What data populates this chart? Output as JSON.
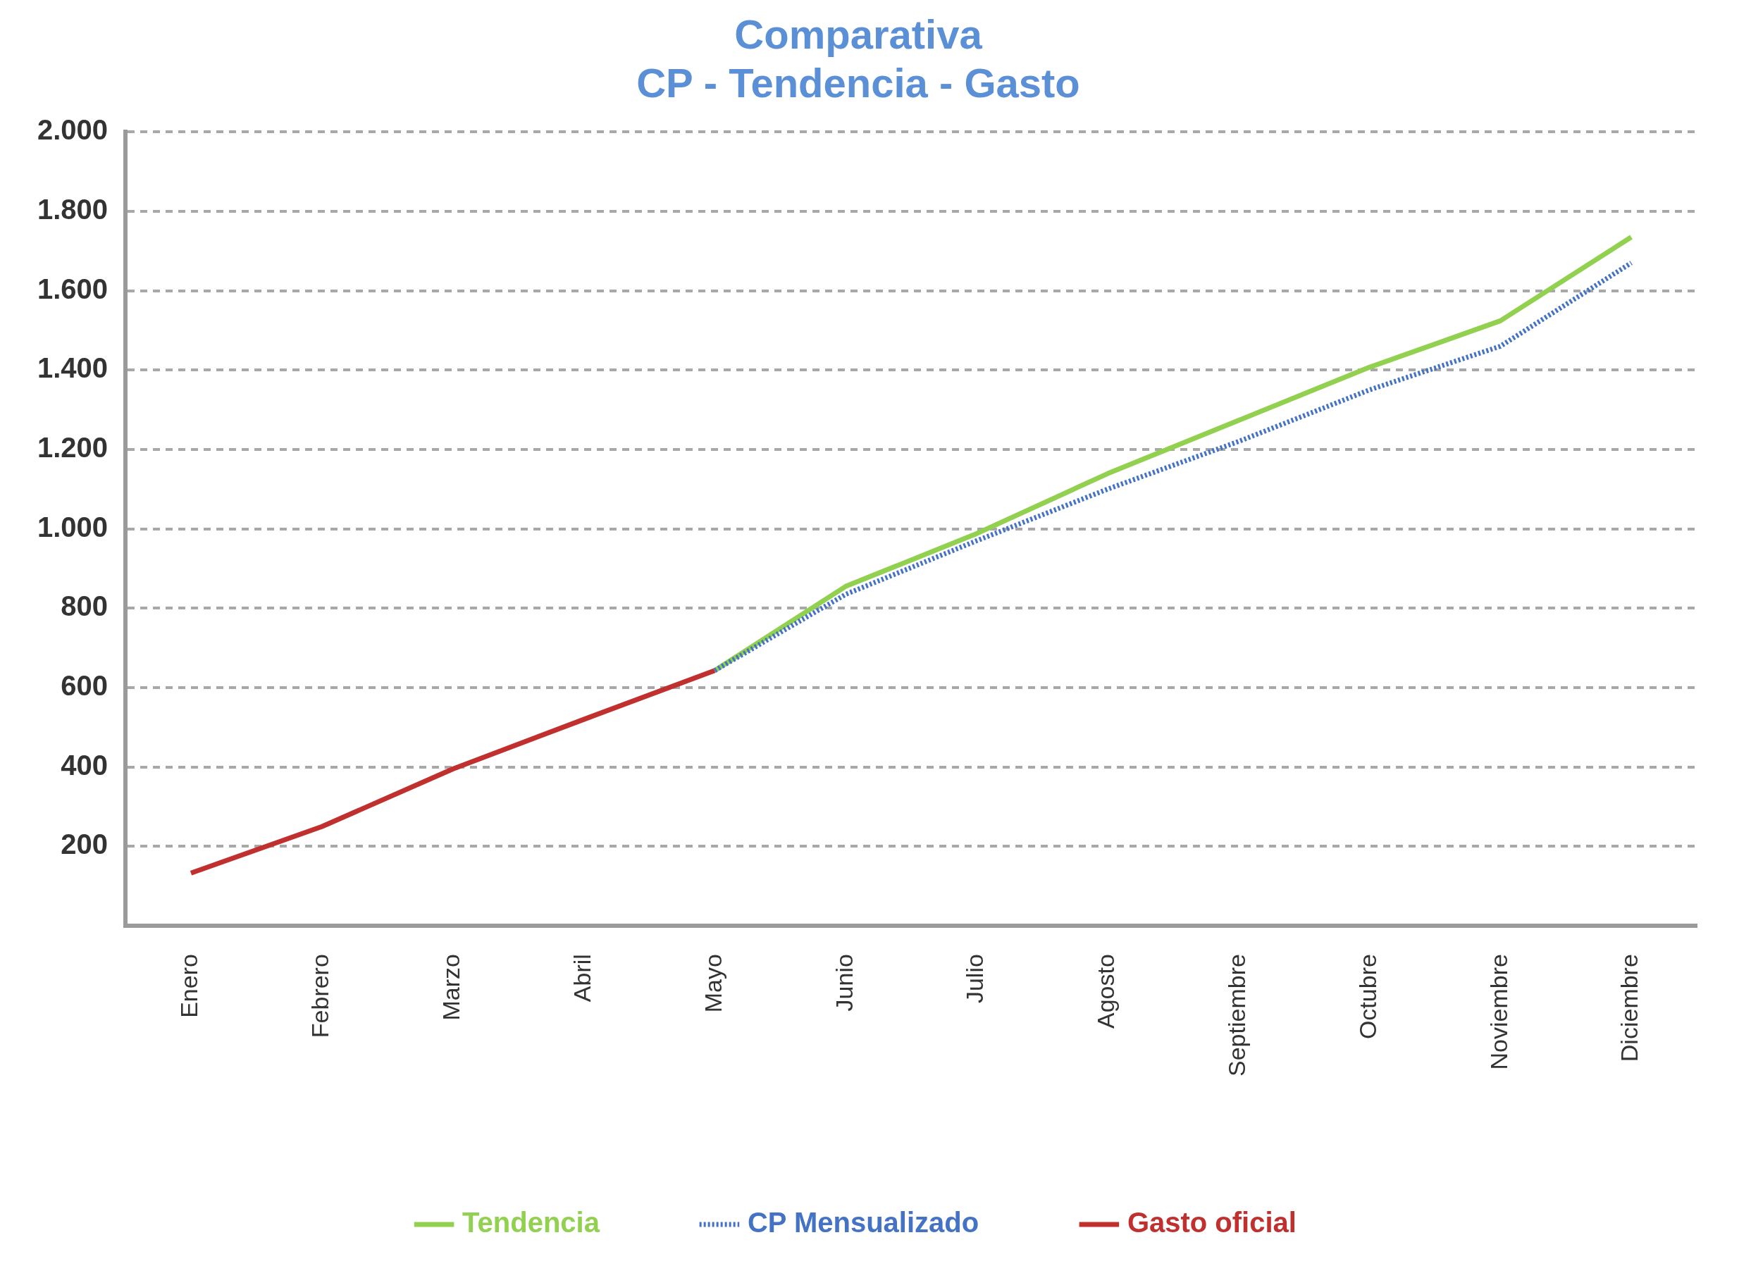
{
  "chart_data": {
    "type": "line",
    "title": [
      "Comparativa",
      "CP - Tendencia - Gasto"
    ],
    "categories": [
      "Enero",
      "Febrero",
      "Marzo",
      "Abril",
      "Mayo",
      "Junio",
      "Julio",
      "Agosto",
      "Septiembre",
      "Octubre",
      "Noviembre",
      "Diciembre"
    ],
    "series": [
      {
        "name": "Tendencia",
        "color": "#92d050",
        "line_style": "solid",
        "values": [
          null,
          null,
          null,
          null,
          643,
          855,
          988,
          1139,
          1273,
          1407,
          1524,
          1735
        ]
      },
      {
        "name": "CP Mensualizado",
        "color": "#4472c4",
        "line_style": "dotted",
        "values": [
          null,
          null,
          null,
          null,
          643,
          835,
          970,
          1100,
          1220,
          1350,
          1460,
          1670
        ]
      },
      {
        "name": "Gasto oficial",
        "color": "#c0302e",
        "line_style": "solid",
        "values": [
          133,
          250,
          395,
          520,
          643,
          null,
          null,
          null,
          null,
          null,
          null,
          null
        ]
      }
    ],
    "ylim": [
      0,
      2000
    ],
    "yticks": [
      {
        "value": 0,
        "label": null
      },
      {
        "value": 200,
        "label": "200"
      },
      {
        "value": 400,
        "label": "400"
      },
      {
        "value": 600,
        "label": "600"
      },
      {
        "value": 800,
        "label": "800"
      },
      {
        "value": 1000,
        "label": "1.000"
      },
      {
        "value": 1200,
        "label": "1.200"
      },
      {
        "value": 1400,
        "label": "1.400"
      },
      {
        "value": 1600,
        "label": "1.600"
      },
      {
        "value": 1800,
        "label": "1.800"
      },
      {
        "value": 2000,
        "label": "2.000"
      }
    ],
    "grid": "y",
    "legend": "bottom",
    "marker": "none"
  }
}
